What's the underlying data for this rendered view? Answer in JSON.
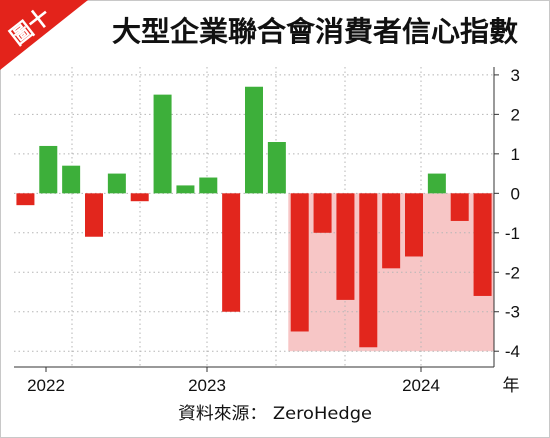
{
  "figure_label": "圖十",
  "source": "資料來源： ZeroHedge",
  "colors": {
    "positive": "#3daf3a",
    "negative": "#e2261d",
    "shade": "#f7c6c6",
    "tag": "#e3231b",
    "grid": "#b5b5b5",
    "axis": "#333333"
  },
  "chart_data": {
    "type": "bar",
    "title": "大型企業聯合會消費者信心指數",
    "values": [
      -0.3,
      1.2,
      0.7,
      -1.1,
      0.5,
      -0.2,
      2.5,
      0.2,
      0.4,
      -3.0,
      2.7,
      1.3,
      -3.5,
      -1.0,
      -2.7,
      -3.9,
      -1.9,
      -1.6,
      0.5,
      -0.7,
      -2.6
    ],
    "x_tick_labels": [
      "2022",
      "2023",
      "2024"
    ],
    "x_unit": "年",
    "y_ticks": [
      3,
      2,
      1,
      0,
      -1,
      -2,
      -3,
      -4
    ],
    "ylim": [
      -4.4,
      3.2
    ],
    "y_axis_side": "right",
    "grid": true,
    "legend": "none",
    "shaded_region": {
      "first_bar_index": 12,
      "last_bar_index": 20,
      "y_from": 0,
      "y_to": -4
    }
  }
}
